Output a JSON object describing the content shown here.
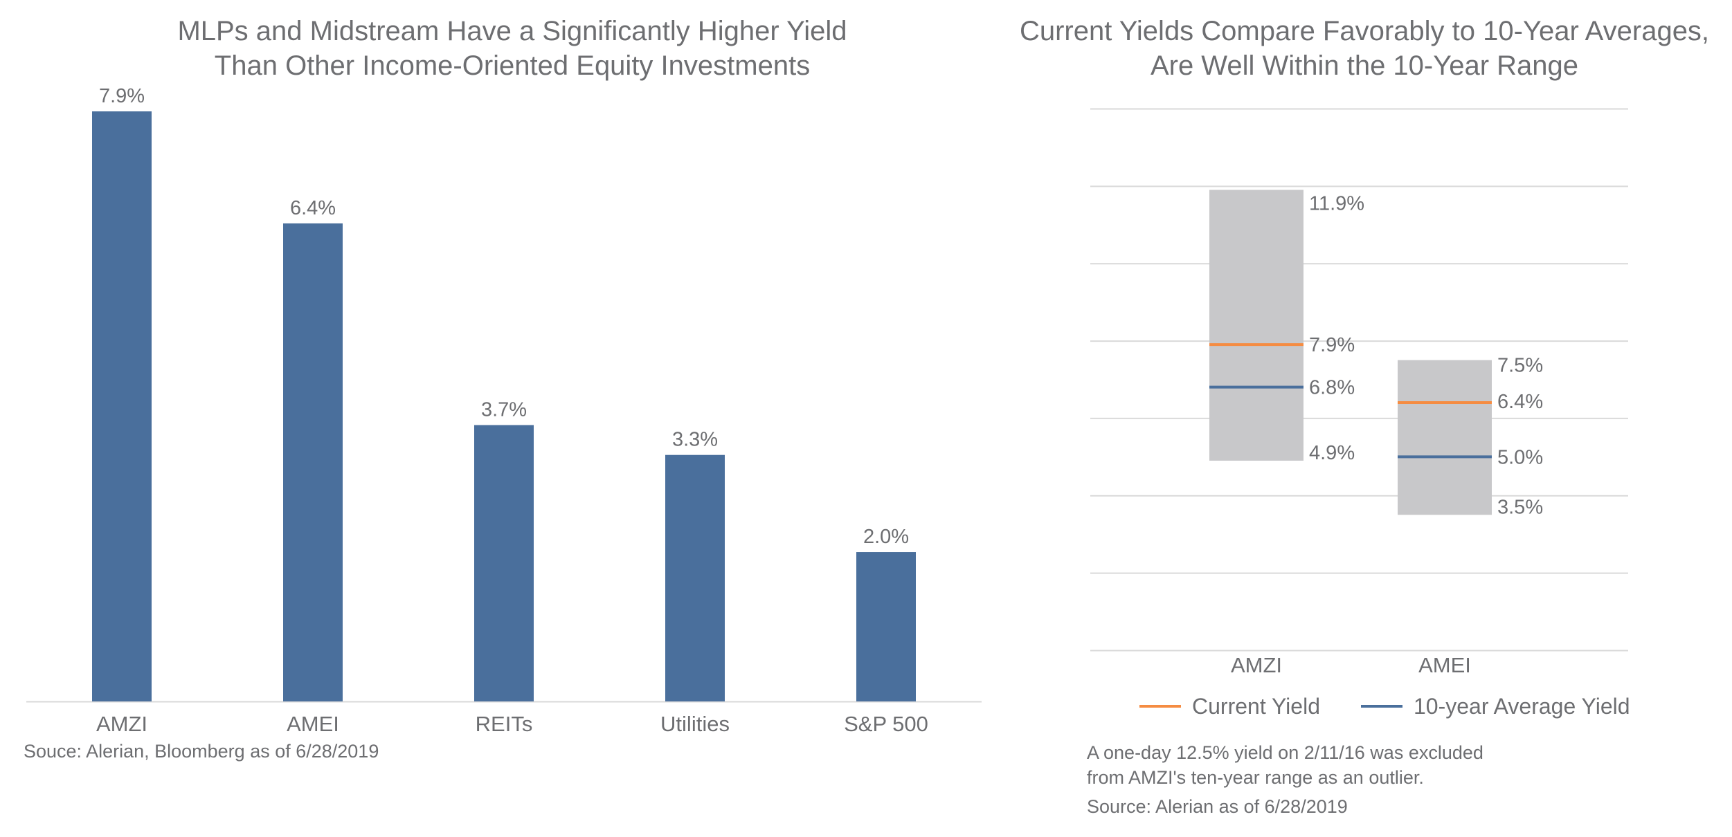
{
  "colors": {
    "bar": "#4a6f9c",
    "current_yield": "#f58c42",
    "average_yield": "#4a6f9c",
    "range": "#c8c8ca",
    "gridline": "#d9d9d9",
    "axis": "#d9d9d9",
    "text": "#6d6e71"
  },
  "chart_data": [
    {
      "type": "bar",
      "title": "MLPs and Midstream Have a Significantly Higher Yield Than Other Income-Oriented Equity Investments",
      "title_lines": [
        "MLPs and Midstream Have a Significantly Higher Yield",
        "Than Other Income-Oriented Equity Investments"
      ],
      "categories": [
        "AMZI",
        "AMEI",
        "REITs",
        "Utilities",
        "S&P 500"
      ],
      "values": [
        7.9,
        6.4,
        3.7,
        3.3,
        2.0
      ],
      "data_labels": [
        "7.9%",
        "6.4%",
        "3.7%",
        "3.3%",
        "2.0%"
      ],
      "ylim": [
        0,
        7.9
      ],
      "grid": false,
      "source": "Souce: Alerian, Bloomberg as of 6/28/2019"
    },
    {
      "type": "range",
      "title": "Current Yields Compare Favorably to 10-Year Averages, Are Well Within the 10-Year Range",
      "title_lines": [
        "Current Yields Compare Favorably to 10-Year Averages,",
        "Are Well Within the 10-Year Range"
      ],
      "categories": [
        "AMZI",
        "AMEI"
      ],
      "ranges": [
        {
          "category": "AMZI",
          "low": 4.9,
          "high": 11.9,
          "current": 7.9,
          "average": 6.8,
          "labels": {
            "high": "11.9%",
            "current": "7.9%",
            "average": "6.8%",
            "low": "4.9%"
          }
        },
        {
          "category": "AMEI",
          "low": 3.5,
          "high": 7.5,
          "current": 6.4,
          "average": 5.0,
          "labels": {
            "high": "7.5%",
            "current": "6.4%",
            "average": "5.0%",
            "low": "3.5%"
          }
        }
      ],
      "ylim": [
        0,
        14
      ],
      "grid": true,
      "legend": {
        "placement": "bottom",
        "items": [
          {
            "name": "Current Yield",
            "color_key": "current_yield"
          },
          {
            "name": "10-year Average Yield",
            "color_key": "average_yield"
          }
        ]
      },
      "note_lines": [
        "A one-day 12.5% yield on 2/11/16 was excluded",
        "from AMZI's ten-year range as an outlier."
      ],
      "source": "Source: Alerian as of 6/28/2019"
    }
  ]
}
